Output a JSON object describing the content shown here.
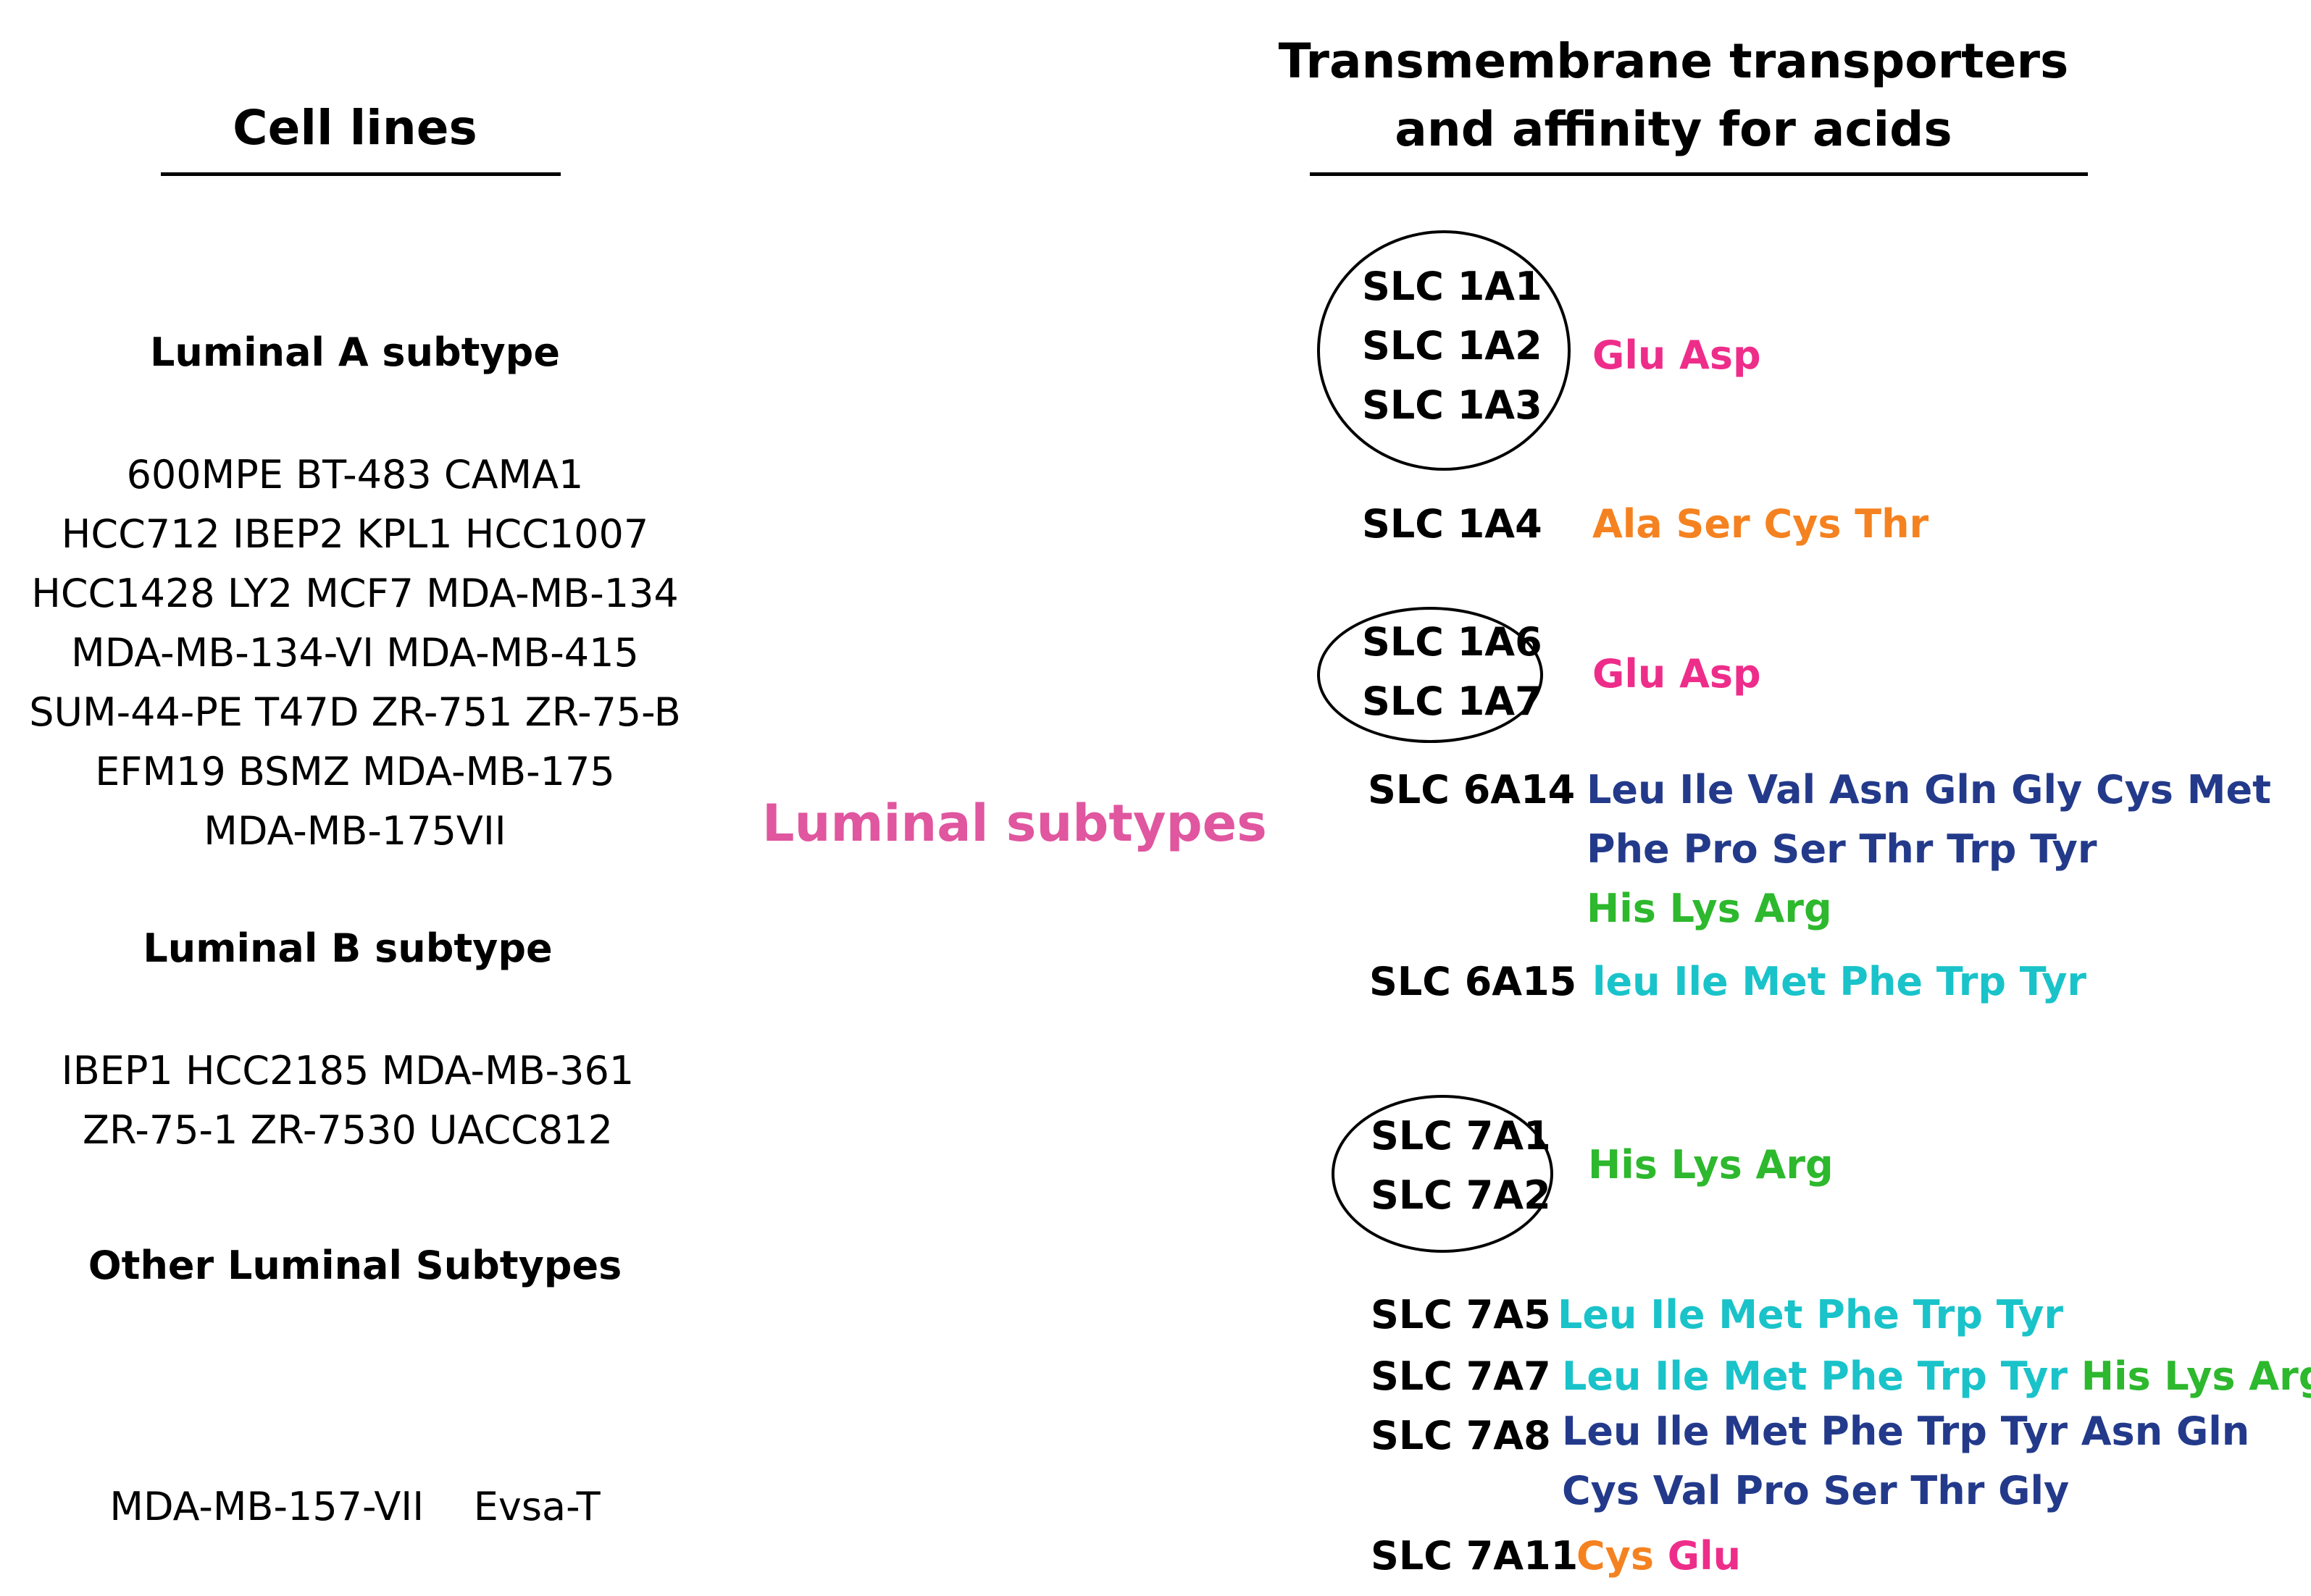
{
  "colors": {
    "pink": "#ee2d8a",
    "orange": "#f58220",
    "navy": "#233a8b",
    "cyan": "#19c3c9",
    "green": "#2db82d",
    "label_pink": "#e0569f"
  },
  "left": {
    "header": "Cell lines",
    "sections": [
      {
        "title": "Luminal A subtype",
        "lines": [
          "600MPE  BT-483  CAMA1",
          "HCC712  IBEP2  KPL1 HCC1007",
          "HCC1428  LY2  MCF7  MDA-MB-134",
          "MDA-MB-134-VI  MDA-MB-415",
          "SUM-44-PE  T47D  ZR-751  ZR-75-B",
          "EFM19  BSMZ  MDA-MB-175",
          "MDA-MB-175VII"
        ]
      },
      {
        "title": "Luminal B subtype",
        "lines": [
          "IBEP1 HCC2185  MDA-MB-361",
          "ZR-75-1 ZR-7530 UACC812"
        ]
      },
      {
        "title": "Other Luminal Subtypes",
        "lines": [
          "MDA-MB-157-VII    Evsa-T"
        ]
      }
    ]
  },
  "center_label": "Luminal subtypes",
  "right": {
    "header_line1": "Transmembrane transporters",
    "header_line2": "and affinity for acids",
    "groups": [
      {
        "transporters": [
          "SLC 1A1",
          "SLC 1A2",
          "SLC 1A3"
        ],
        "circled": true,
        "acids": [
          [
            {
              "text": "Glu Asp",
              "color": "pink"
            }
          ]
        ]
      },
      {
        "transporters": [
          "SLC 1A4"
        ],
        "circled": false,
        "acids": [
          [
            {
              "text": "Ala Ser Cys Thr",
              "color": "orange"
            }
          ]
        ]
      },
      {
        "transporters": [
          "SLC 1A6",
          "SLC 1A7"
        ],
        "circled": true,
        "acids": [
          [
            {
              "text": "Glu Asp",
              "color": "pink"
            }
          ]
        ]
      },
      {
        "transporters": [
          "SLC 6A14"
        ],
        "circled": false,
        "acids": [
          [
            {
              "text": "Leu Ile Val Asn Gln Gly Cys Met",
              "color": "navy"
            }
          ],
          [
            {
              "text": "Phe Pro Ser Thr Trp Tyr",
              "color": "navy"
            }
          ],
          [
            {
              "text": "His Lys Arg",
              "color": "green"
            }
          ]
        ]
      },
      {
        "transporters": [
          "SLC 6A15"
        ],
        "circled": false,
        "acids": [
          [
            {
              "text": "leu Ile Met Phe Trp Tyr",
              "color": "cyan"
            }
          ]
        ]
      },
      {
        "transporters": [
          "SLC 7A1",
          "SLC 7A2"
        ],
        "circled": true,
        "acids": [
          [
            {
              "text": "His Lys Arg",
              "color": "green"
            }
          ]
        ]
      },
      {
        "transporters": [
          "SLC 7A5"
        ],
        "circled": false,
        "acids": [
          [
            {
              "text": "Leu Ile Met Phe Trp Tyr",
              "color": "cyan"
            }
          ]
        ]
      },
      {
        "transporters": [
          "SLC 7A7"
        ],
        "circled": false,
        "acids": [
          [
            {
              "text": "Leu Ile Met Phe Trp Tyr ",
              "color": "cyan"
            },
            {
              "text": "His Lys Arg",
              "color": "green"
            }
          ]
        ]
      },
      {
        "transporters": [
          "SLC 7A8"
        ],
        "circled": false,
        "acids": [
          [
            {
              "text": "Leu Ile Met Phe Trp Tyr Asn Gln",
              "color": "navy"
            }
          ],
          [
            {
              "text": "Cys Val Pro Ser Thr Gly",
              "color": "navy"
            }
          ]
        ]
      },
      {
        "transporters": [
          "SLC 7A11"
        ],
        "circled": false,
        "acids": [
          [
            {
              "text": "Cys ",
              "color": "orange"
            },
            {
              "text": "Glu",
              "color": "pink"
            }
          ]
        ]
      }
    ]
  }
}
